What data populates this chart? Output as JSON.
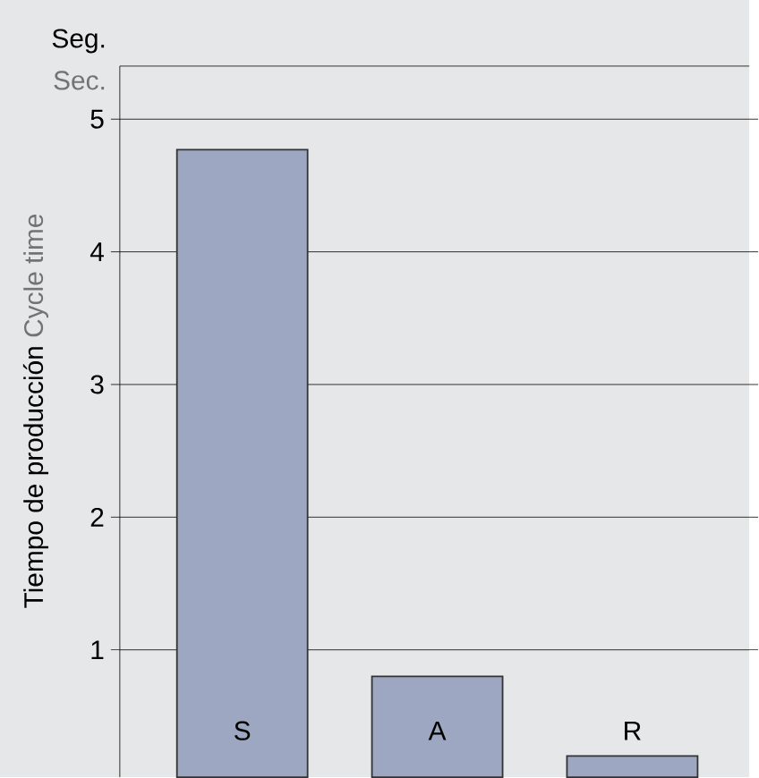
{
  "chart_data": {
    "type": "bar",
    "ylabel": "Tiempo de producción",
    "categories": [
      "S",
      "A",
      "R"
    ],
    "values": [
      4.77,
      0.8,
      0.2
    ],
    "color": "#9da7c1",
    "ylim": [
      0.04,
      5.4
    ],
    "yticks": [
      1,
      2,
      3,
      4,
      5
    ],
    "grid": "y",
    "tick_labels": "y",
    "annotations": [
      "Seg.",
      "Sec.",
      "Cycle time"
    ]
  }
}
